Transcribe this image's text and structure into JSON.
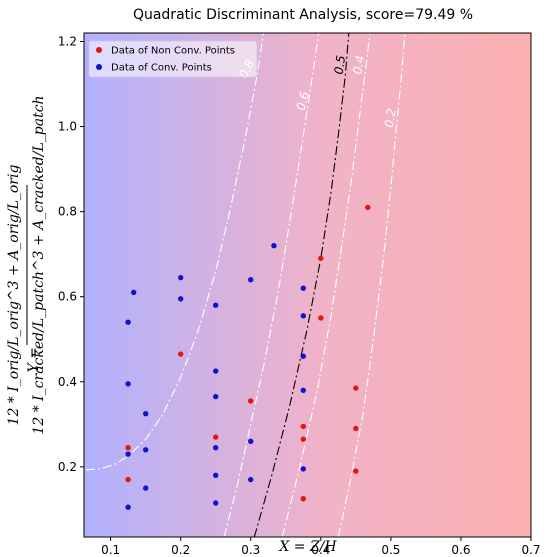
{
  "chart_data": {
    "type": "scatter",
    "title": "Quadratic Discriminant Analysis, score=79.49 %",
    "xlabel": "X = Z/H",
    "ylabel": {
      "prefix": "Y = ",
      "numerator": "12 * I_orig/L_orig^3 + A_orig/L_orig",
      "denominator": "12 * I_cracked/L_patch^3 + A_cracked/L_patch"
    },
    "xlim": [
      0.062,
      0.7
    ],
    "ylim": [
      0.035,
      1.22
    ],
    "xticks": [
      "0.1",
      "0.2",
      "0.3",
      "0.4",
      "0.5",
      "0.6",
      "0.7"
    ],
    "yticks": [
      "0.2",
      "0.4",
      "0.6",
      "0.8",
      "1.0",
      "1.2"
    ],
    "grid": false,
    "legend": {
      "position": "top-left",
      "entries": [
        {
          "name": "Data of Non Conv. Points",
          "color": "#e8140c"
        },
        {
          "name": "Data of Conv. Points",
          "color": "#1212cc"
        }
      ]
    },
    "background": {
      "left_color": "#b1b1ff",
      "right_color": "#fcb1b1",
      "boundary_color": "#f0b3c8"
    },
    "series": [
      {
        "name": "Data of Non Conv. Points",
        "color": "#e8140c",
        "points": [
          [
            0.125,
            0.245
          ],
          [
            0.125,
            0.17
          ],
          [
            0.2,
            0.465
          ],
          [
            0.25,
            0.27
          ],
          [
            0.3,
            0.355
          ],
          [
            0.375,
            0.295
          ],
          [
            0.375,
            0.265
          ],
          [
            0.375,
            0.125
          ],
          [
            0.4,
            0.69
          ],
          [
            0.4,
            0.55
          ],
          [
            0.45,
            0.385
          ],
          [
            0.45,
            0.29
          ],
          [
            0.45,
            0.19
          ],
          [
            0.467,
            0.81
          ]
        ]
      },
      {
        "name": "Data of Conv. Points",
        "color": "#1212cc",
        "points": [
          [
            0.125,
            0.54
          ],
          [
            0.125,
            0.395
          ],
          [
            0.125,
            0.23
          ],
          [
            0.125,
            0.105
          ],
          [
            0.133,
            0.61
          ],
          [
            0.15,
            0.325
          ],
          [
            0.15,
            0.24
          ],
          [
            0.15,
            0.15
          ],
          [
            0.2,
            0.645
          ],
          [
            0.2,
            0.595
          ],
          [
            0.25,
            0.58
          ],
          [
            0.25,
            0.425
          ],
          [
            0.25,
            0.365
          ],
          [
            0.25,
            0.245
          ],
          [
            0.25,
            0.18
          ],
          [
            0.25,
            0.115
          ],
          [
            0.3,
            0.64
          ],
          [
            0.3,
            0.26
          ],
          [
            0.3,
            0.17
          ],
          [
            0.333,
            0.72
          ],
          [
            0.375,
            0.62
          ],
          [
            0.375,
            0.555
          ],
          [
            0.375,
            0.46
          ],
          [
            0.375,
            0.38
          ],
          [
            0.375,
            0.195
          ]
        ]
      }
    ],
    "contours": [
      {
        "label": "0.8",
        "color": "#ffffff",
        "dash": "9,3,2,3",
        "points": [
          [
            0.065,
            0.193
          ],
          [
            0.085,
            0.195
          ],
          [
            0.105,
            0.205
          ],
          [
            0.125,
            0.225
          ],
          [
            0.15,
            0.265
          ],
          [
            0.175,
            0.325
          ],
          [
            0.2,
            0.41
          ],
          [
            0.225,
            0.52
          ],
          [
            0.25,
            0.66
          ],
          [
            0.27,
            0.8
          ],
          [
            0.29,
            0.955
          ],
          [
            0.3,
            1.04
          ],
          [
            0.31,
            1.13
          ],
          [
            0.318,
            1.22
          ]
        ]
      },
      {
        "label": "0.6",
        "color": "#ffffff",
        "dash": "9,3,2,3",
        "points": [
          [
            0.262,
            0.035
          ],
          [
            0.28,
            0.15
          ],
          [
            0.3,
            0.3
          ],
          [
            0.32,
            0.45
          ],
          [
            0.34,
            0.62
          ],
          [
            0.36,
            0.82
          ],
          [
            0.375,
            0.98
          ],
          [
            0.39,
            1.14
          ],
          [
            0.397,
            1.22
          ]
        ]
      },
      {
        "label": "0.5",
        "color": "#000000",
        "dash": "9,3,2,3",
        "points": [
          [
            0.305,
            0.035
          ],
          [
            0.33,
            0.18
          ],
          [
            0.355,
            0.34
          ],
          [
            0.38,
            0.52
          ],
          [
            0.4,
            0.69
          ],
          [
            0.415,
            0.85
          ],
          [
            0.425,
            0.98
          ],
          [
            0.435,
            1.12
          ],
          [
            0.44,
            1.22
          ]
        ]
      },
      {
        "label": "0.4",
        "color": "#ffffff",
        "dash": "9,3,2,3",
        "points": [
          [
            0.345,
            0.035
          ],
          [
            0.37,
            0.2
          ],
          [
            0.395,
            0.38
          ],
          [
            0.415,
            0.56
          ],
          [
            0.43,
            0.72
          ],
          [
            0.445,
            0.89
          ],
          [
            0.455,
            1.02
          ],
          [
            0.465,
            1.15
          ],
          [
            0.47,
            1.22
          ]
        ]
      },
      {
        "label": "0.2",
        "color": "#ffffff",
        "dash": "9,3,2,3",
        "points": [
          [
            0.425,
            0.035
          ],
          [
            0.44,
            0.15
          ],
          [
            0.46,
            0.32
          ],
          [
            0.475,
            0.5
          ],
          [
            0.49,
            0.7
          ],
          [
            0.5,
            0.86
          ],
          [
            0.508,
            1.0
          ],
          [
            0.515,
            1.12
          ],
          [
            0.52,
            1.22
          ]
        ]
      }
    ],
    "contour_labels": [
      {
        "text": "0.8",
        "at": [
          0.295,
          1.135
        ],
        "rotate": -64
      },
      {
        "text": "0.6",
        "at": [
          0.375,
          1.06
        ],
        "rotate": -76
      },
      {
        "text": "0.5",
        "at": [
          0.428,
          1.145
        ],
        "rotate": -82
      },
      {
        "text": "0.4",
        "at": [
          0.455,
          1.145
        ],
        "rotate": -80
      },
      {
        "text": "0.2",
        "at": [
          0.5,
          1.02
        ],
        "rotate": -80
      }
    ]
  }
}
